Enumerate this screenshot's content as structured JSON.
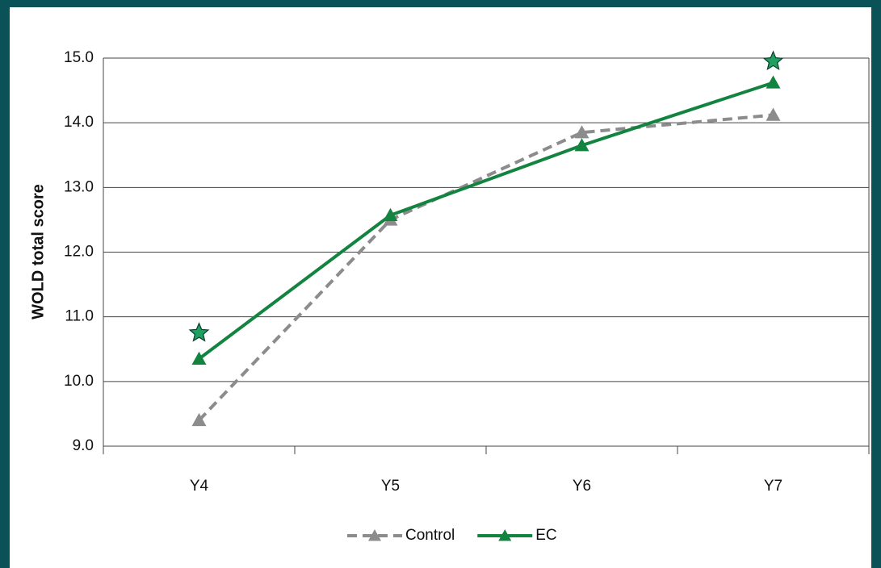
{
  "chart_data": {
    "type": "line",
    "y_label": "WOLD total score",
    "categories": [
      "Y4",
      "Y5",
      "Y6",
      "Y7"
    ],
    "series": [
      {
        "name": "Control",
        "color": "#8c8c8c",
        "dashed": true,
        "values": [
          9.4,
          12.5,
          13.85,
          14.12
        ]
      },
      {
        "name": "EC",
        "color": "#13843f",
        "dashed": false,
        "values": [
          10.35,
          12.57,
          13.65,
          14.62
        ]
      }
    ],
    "star_markers": [
      {
        "category": "Y4",
        "value": 10.75
      },
      {
        "category": "Y7",
        "value": 14.95
      }
    ],
    "ylim": [
      9,
      15
    ],
    "yticks": [
      {
        "value": 9,
        "label": "9.0"
      },
      {
        "value": 10,
        "label": "10.0"
      },
      {
        "value": 11,
        "label": "11.0"
      },
      {
        "value": 12,
        "label": "12.0"
      },
      {
        "value": 13,
        "label": "13.0"
      },
      {
        "value": 14,
        "label": "14.0"
      },
      {
        "value": 15,
        "label": "15.0"
      }
    ],
    "grid": true,
    "legend": "bottom"
  }
}
